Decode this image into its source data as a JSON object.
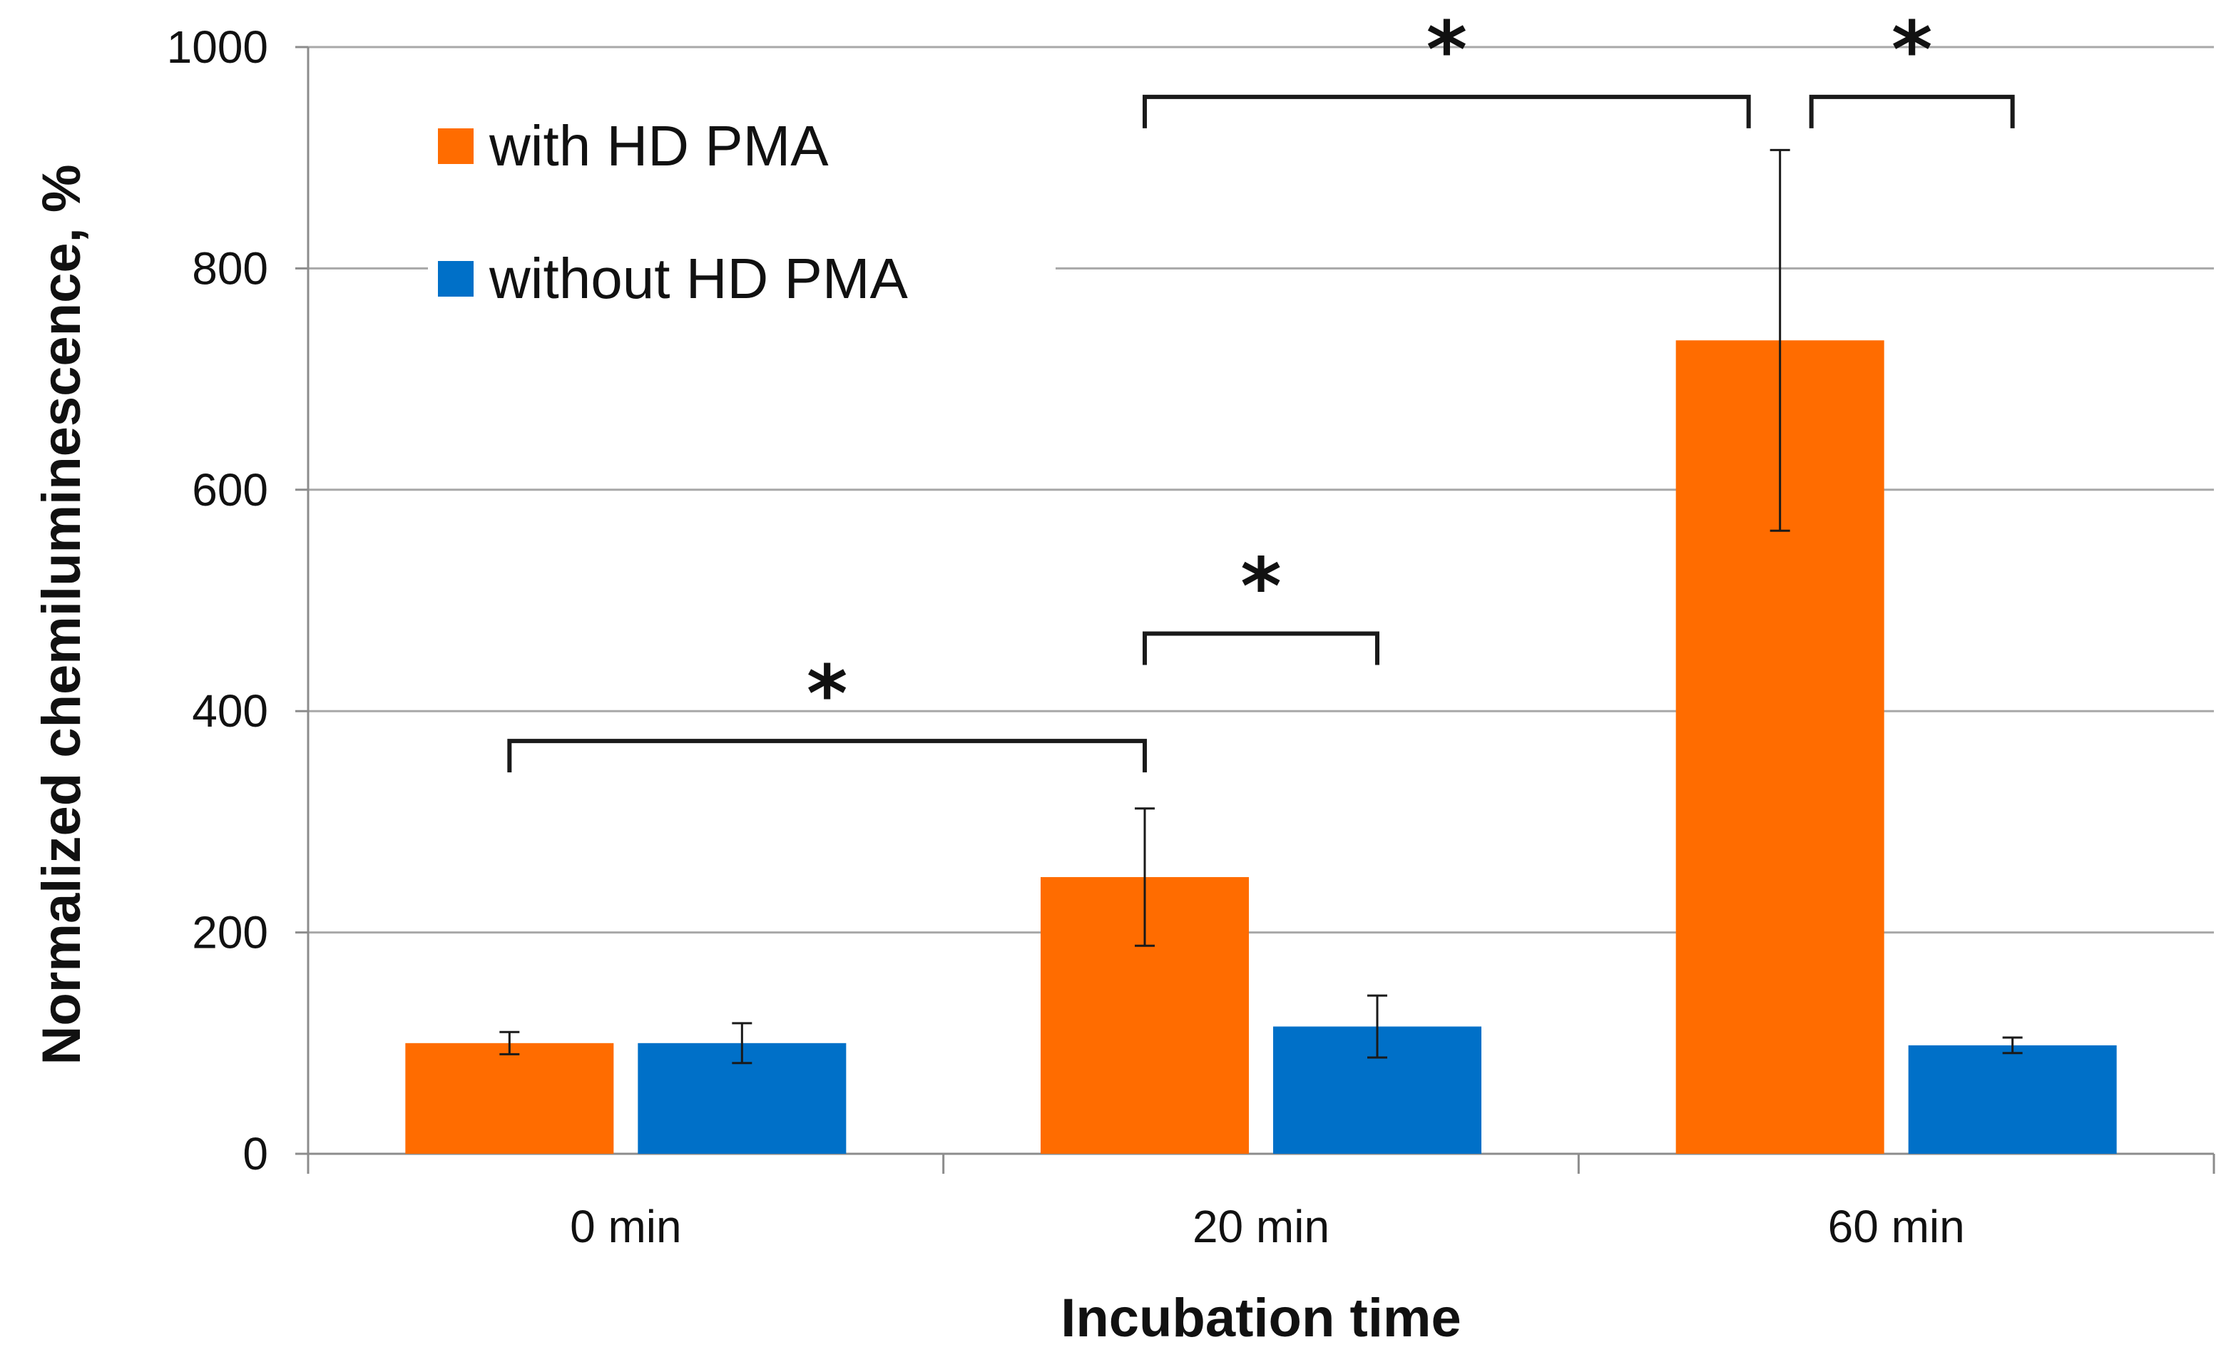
{
  "chart_data": {
    "type": "bar",
    "title": "",
    "xlabel": "Incubation time",
    "ylabel": "Normalized chemiluminescence, %",
    "categories": [
      "0 min",
      "20 min",
      "60 min"
    ],
    "ylim": [
      0,
      1000
    ],
    "yticks": [
      0,
      200,
      400,
      600,
      800,
      1000
    ],
    "grid": true,
    "legend_position": "top-left",
    "series": [
      {
        "name": "with HD PMA",
        "color": "#ff6c00",
        "values": [
          100,
          250,
          735
        ],
        "errors": [
          10,
          62,
          172
        ]
      },
      {
        "name": "without HD PMA",
        "color": "#0070c8",
        "values": [
          100,
          115,
          98
        ],
        "errors": [
          18,
          28,
          7
        ]
      }
    ],
    "significance": [
      {
        "label": "*",
        "from": {
          "category": 0,
          "series": 0
        },
        "to": {
          "category": 1,
          "series": 0
        },
        "level": 373
      },
      {
        "label": "*",
        "from": {
          "category": 1,
          "series": 0
        },
        "to": {
          "category": 1,
          "series": 1
        },
        "level": 470
      },
      {
        "label": "*",
        "from": {
          "category": 1,
          "series": 0
        },
        "to": {
          "category": 2,
          "series": 0
        },
        "level": 955
      },
      {
        "label": "*",
        "from": {
          "category": 2,
          "series": 0
        },
        "to": {
          "category": 2,
          "series": 1
        },
        "level": 955
      }
    ]
  }
}
